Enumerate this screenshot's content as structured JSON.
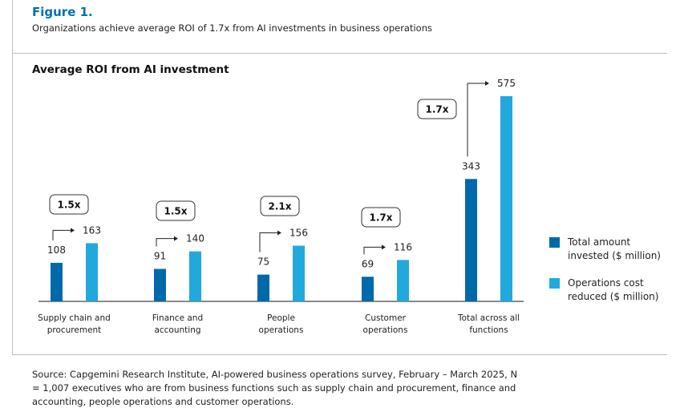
{
  "header": {
    "figure": "Figure 1.",
    "subtitle": "Organizations achieve average ROI of 1.7x from AI investments in business operations"
  },
  "source": "Source: Capgemini Research Institute, AI-powered business operations survey, February – March 2025, N = 1,007 executives who are from business functions such as supply chain and procurement, finance and accounting, people operations and customer operations.",
  "chart_data": {
    "type": "bar",
    "title": "Average ROI from AI investment",
    "categories": [
      [
        "Supply chain and",
        "procurement"
      ],
      [
        "Finance and",
        "accounting"
      ],
      [
        "People",
        "operations"
      ],
      [
        "Customer",
        "operations"
      ],
      [
        "Total across all",
        "functions"
      ]
    ],
    "series": [
      {
        "name": "Total amount invested ($ million)",
        "legend_lines": [
          "Total amount",
          "invested ($ million)"
        ],
        "color": "#0069aa",
        "values": [
          108,
          91,
          75,
          69,
          343
        ]
      },
      {
        "name": "Operations cost reduced ($ million)",
        "legend_lines": [
          "Operations cost",
          "reduced ($ million)"
        ],
        "color": "#21a9dd",
        "values": [
          163,
          140,
          156,
          116,
          575
        ]
      }
    ],
    "roi_labels": [
      "1.5x",
      "1.5x",
      "2.1x",
      "1.7x",
      "1.7x"
    ],
    "ylim": [
      0,
      600
    ],
    "legend": "right"
  }
}
